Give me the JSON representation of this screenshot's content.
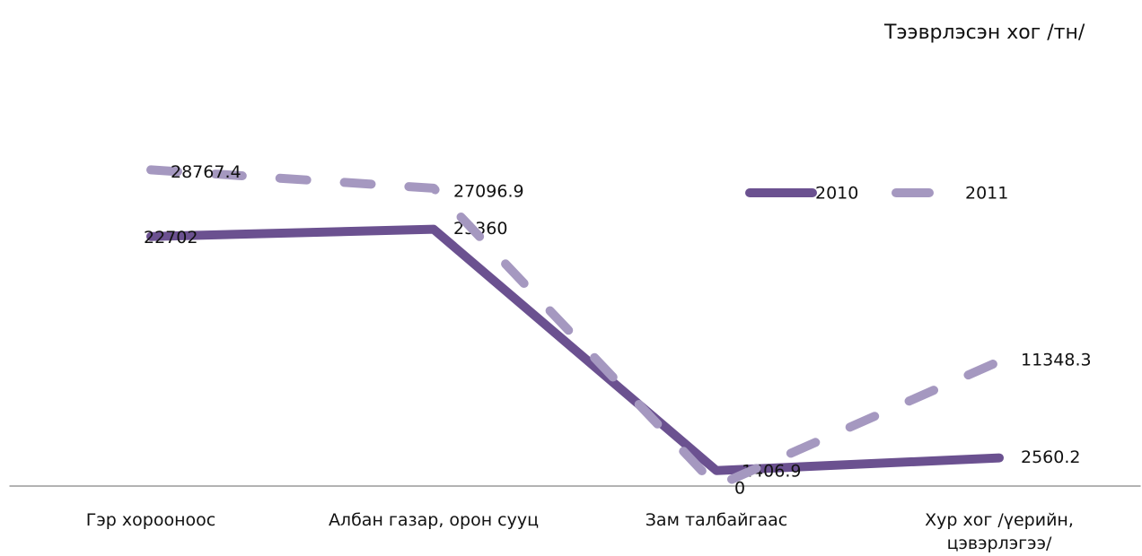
{
  "chart_data": {
    "type": "line",
    "title": "Тээврлэсэн хог /тн/",
    "categories": [
      "Гэр хорооноос",
      "Албан газар, орон сууц",
      "Зам талбайгаас",
      "Хур хог /үерийн, цэвэрлэгээ/"
    ],
    "series": [
      {
        "name": "2010",
        "color": "#6b5190",
        "values": [
          22702,
          23360,
          1406.9,
          2560.2
        ]
      },
      {
        "name": "2011",
        "color": "#a598c0",
        "dashed": true,
        "values": [
          28767.4,
          27096.9,
          0,
          11348.3
        ]
      }
    ],
    "ylim": [
      0,
      35000
    ],
    "legend": "top"
  }
}
